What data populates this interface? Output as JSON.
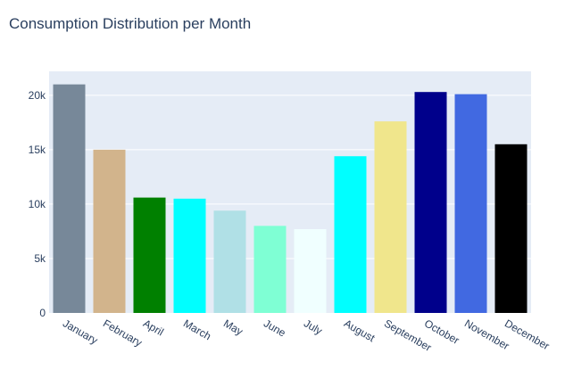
{
  "chart_data": {
    "type": "bar",
    "title": "Consumption Distribution per Month",
    "xlabel": "",
    "ylabel": "",
    "ylim": [
      0,
      22200
    ],
    "yticks": [
      0,
      5000,
      10000,
      15000,
      20000
    ],
    "ytick_labels": [
      "0",
      "5k",
      "10k",
      "15k",
      "20k"
    ],
    "grid": true,
    "legend": "none",
    "plot_bgcolor": "#e5ecf6",
    "categories": [
      "January",
      "February",
      "April",
      "March",
      "May",
      "June",
      "July",
      "August",
      "September",
      "October",
      "November",
      "December"
    ],
    "values": [
      21000,
      15000,
      10600,
      10500,
      9400,
      8000,
      7700,
      14400,
      17600,
      20300,
      20100,
      15500
    ],
    "colors": [
      "#778899",
      "#d2b48c",
      "#008000",
      "#00ffff",
      "#b0e0e6",
      "#7fffd4",
      "#f0ffff",
      "#00ffff",
      "#f0e68c",
      "#00008b",
      "#4169e1",
      "#000000"
    ]
  }
}
